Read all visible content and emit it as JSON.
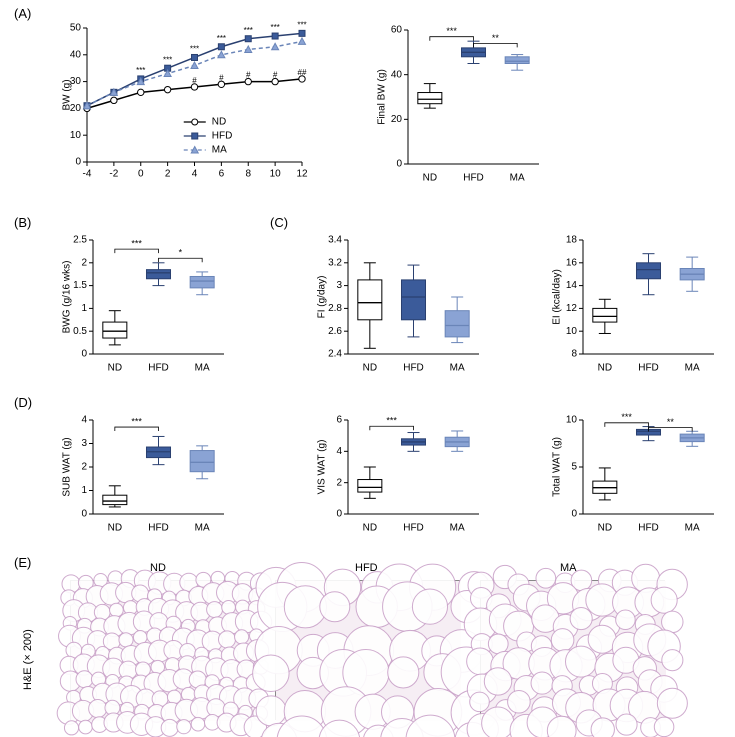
{
  "colors": {
    "nd_fill": "#ffffff",
    "nd_stroke": "#000000",
    "hfd_fill": "#3b5b9a",
    "hfd_stroke": "#2a4070",
    "ma_fill": "#8aa3d4",
    "ma_stroke": "#6a85b8",
    "axis": "#000000",
    "bg": "#ffffff",
    "he_bg": "#f6eef4",
    "he_line": "#caa3c9"
  },
  "panelA": {
    "label": "(A)",
    "line": {
      "xlabel": "",
      "ylabel": "BW (g)",
      "xlim": [
        -4,
        12
      ],
      "xticks": [
        -4,
        -2,
        0,
        2,
        4,
        6,
        8,
        10,
        12
      ],
      "ylim": [
        0,
        50
      ],
      "yticks": [
        0,
        10,
        20,
        30,
        40,
        50
      ],
      "series": {
        "ND": {
          "x": [
            -4,
            -2,
            0,
            2,
            4,
            6,
            8,
            10,
            12
          ],
          "y": [
            20,
            23,
            26,
            27,
            28,
            29,
            30,
            30,
            31
          ],
          "marker": "circle",
          "line_style": "solid",
          "color_key": "nd"
        },
        "HFD": {
          "x": [
            -4,
            -2,
            0,
            2,
            4,
            6,
            8,
            10,
            12
          ],
          "y": [
            21,
            26,
            31,
            35,
            39,
            43,
            46,
            47,
            48
          ],
          "marker": "square",
          "line_style": "solid",
          "color_key": "hfd"
        },
        "MA": {
          "x": [
            -4,
            -2,
            0,
            2,
            4,
            6,
            8,
            10,
            12
          ],
          "y": [
            21,
            26,
            30,
            33,
            36,
            40,
            42,
            43,
            45
          ],
          "marker": "triangle",
          "line_style": "dash",
          "color_key": "ma"
        }
      },
      "sig_top": {
        "x": [
          0,
          2,
          4,
          6,
          8,
          10,
          12
        ],
        "text": [
          "***",
          "***",
          "***",
          "***",
          "***",
          "***",
          "***"
        ]
      },
      "sig_mid": {
        "x": [
          4,
          6,
          8,
          10,
          12
        ],
        "text": [
          "#",
          "#",
          "#",
          "#",
          "##"
        ]
      },
      "legend": [
        {
          "label": "ND",
          "key": "nd",
          "marker": "circle",
          "dash": false
        },
        {
          "label": "HFD",
          "key": "hfd",
          "marker": "square",
          "dash": false
        },
        {
          "label": "MA",
          "key": "ma",
          "marker": "triangle",
          "dash": true
        }
      ]
    },
    "box": {
      "ylabel": "Final BW (g)",
      "ylim": [
        0,
        60
      ],
      "yticks": [
        0,
        20,
        40,
        60
      ],
      "cats": [
        "ND",
        "HFD",
        "MA"
      ],
      "data": {
        "ND": {
          "min": 25,
          "q1": 27,
          "med": 29,
          "q3": 32,
          "max": 36,
          "color_key": "nd"
        },
        "HFD": {
          "min": 45,
          "q1": 48,
          "med": 50,
          "q3": 52,
          "max": 55,
          "color_key": "hfd"
        },
        "MA": {
          "min": 42,
          "q1": 45,
          "med": 46,
          "q3": 48,
          "max": 49,
          "color_key": "ma"
        }
      },
      "sig": [
        {
          "from": "ND",
          "to": "HFD",
          "text": "***",
          "y": 57
        },
        {
          "from": "HFD",
          "to": "MA",
          "text": "**",
          "y": 54
        }
      ]
    }
  },
  "panelB": {
    "label": "(B)",
    "box": {
      "ylabel": "BWG (g/16 wks)",
      "ylim": [
        0,
        2.5
      ],
      "yticks": [
        0,
        0.5,
        1.0,
        1.5,
        2.0,
        2.5
      ],
      "cats": [
        "ND",
        "HFD",
        "MA"
      ],
      "data": {
        "ND": {
          "min": 0.2,
          "q1": 0.35,
          "med": 0.5,
          "q3": 0.7,
          "max": 0.95,
          "color_key": "nd"
        },
        "HFD": {
          "min": 1.5,
          "q1": 1.65,
          "med": 1.78,
          "q3": 1.85,
          "max": 2.0,
          "color_key": "hfd"
        },
        "MA": {
          "min": 1.3,
          "q1": 1.45,
          "med": 1.6,
          "q3": 1.7,
          "max": 1.8,
          "color_key": "ma"
        }
      },
      "sig": [
        {
          "from": "ND",
          "to": "HFD",
          "text": "***",
          "y": 2.3
        },
        {
          "from": "HFD",
          "to": "MA",
          "text": "*",
          "y": 2.1
        }
      ]
    }
  },
  "panelC": {
    "label": "(C)",
    "fi": {
      "ylabel": "FI (g/day)",
      "ylim": [
        2.4,
        3.4
      ],
      "yticks": [
        2.4,
        2.6,
        2.8,
        3.0,
        3.2,
        3.4
      ],
      "cats": [
        "ND",
        "HFD",
        "MA"
      ],
      "data": {
        "ND": {
          "min": 2.45,
          "q1": 2.7,
          "med": 2.85,
          "q3": 3.05,
          "max": 3.2,
          "color_key": "nd"
        },
        "HFD": {
          "min": 2.55,
          "q1": 2.7,
          "med": 2.9,
          "q3": 3.05,
          "max": 3.18,
          "color_key": "hfd"
        },
        "MA": {
          "min": 2.5,
          "q1": 2.55,
          "med": 2.65,
          "q3": 2.78,
          "max": 2.9,
          "color_key": "ma"
        }
      },
      "sig": []
    },
    "ei": {
      "ylabel": "EI (kcal/day)",
      "ylim": [
        8,
        18
      ],
      "yticks": [
        8,
        10,
        12,
        14,
        16,
        18
      ],
      "cats": [
        "ND",
        "HFD",
        "MA"
      ],
      "data": {
        "ND": {
          "min": 9.8,
          "q1": 10.8,
          "med": 11.3,
          "q3": 12.0,
          "max": 12.8,
          "color_key": "nd"
        },
        "HFD": {
          "min": 13.2,
          "q1": 14.6,
          "med": 15.4,
          "q3": 16.0,
          "max": 16.8,
          "color_key": "hfd"
        },
        "MA": {
          "min": 13.5,
          "q1": 14.5,
          "med": 15.0,
          "q3": 15.5,
          "max": 16.5,
          "color_key": "ma"
        }
      },
      "sig": []
    }
  },
  "panelD": {
    "label": "(D)",
    "sub": {
      "ylabel": "SUB WAT (g)",
      "ylim": [
        0,
        4
      ],
      "yticks": [
        0,
        1,
        2,
        3,
        4
      ],
      "cats": [
        "ND",
        "HFD",
        "MA"
      ],
      "data": {
        "ND": {
          "min": 0.3,
          "q1": 0.4,
          "med": 0.55,
          "q3": 0.8,
          "max": 1.2,
          "color_key": "nd"
        },
        "HFD": {
          "min": 2.1,
          "q1": 2.4,
          "med": 2.65,
          "q3": 2.85,
          "max": 3.3,
          "color_key": "hfd"
        },
        "MA": {
          "min": 1.5,
          "q1": 1.8,
          "med": 2.2,
          "q3": 2.7,
          "max": 2.9,
          "color_key": "ma"
        }
      },
      "sig": [
        {
          "from": "ND",
          "to": "HFD",
          "text": "***",
          "y": 3.7
        }
      ]
    },
    "vis": {
      "ylabel": "VIS WAT (g)",
      "ylim": [
        0,
        6
      ],
      "yticks": [
        0,
        2,
        4,
        6
      ],
      "cats": [
        "ND",
        "HFD",
        "MA"
      ],
      "data": {
        "ND": {
          "min": 1.0,
          "q1": 1.4,
          "med": 1.7,
          "q3": 2.2,
          "max": 3.0,
          "color_key": "nd"
        },
        "HFD": {
          "min": 4.0,
          "q1": 4.4,
          "med": 4.6,
          "q3": 4.8,
          "max": 5.2,
          "color_key": "hfd"
        },
        "MA": {
          "min": 4.0,
          "q1": 4.3,
          "med": 4.6,
          "q3": 4.9,
          "max": 5.3,
          "color_key": "ma"
        }
      },
      "sig": [
        {
          "from": "ND",
          "to": "HFD",
          "text": "***",
          "y": 5.6
        }
      ]
    },
    "total": {
      "ylabel": "Total WAT (g)",
      "ylim": [
        0,
        10
      ],
      "yticks": [
        0,
        5,
        10
      ],
      "cats": [
        "ND",
        "HFD",
        "MA"
      ],
      "data": {
        "ND": {
          "min": 1.5,
          "q1": 2.2,
          "med": 2.8,
          "q3": 3.5,
          "max": 4.9,
          "color_key": "nd"
        },
        "HFD": {
          "min": 7.8,
          "q1": 8.4,
          "med": 8.8,
          "q3": 9.0,
          "max": 9.3,
          "color_key": "hfd"
        },
        "MA": {
          "min": 7.2,
          "q1": 7.7,
          "med": 8.1,
          "q3": 8.5,
          "max": 8.8,
          "color_key": "ma"
        }
      },
      "sig": [
        {
          "from": "ND",
          "to": "HFD",
          "text": "***",
          "y": 9.7
        },
        {
          "from": "HFD",
          "to": "MA",
          "text": "**",
          "y": 9.2
        }
      ]
    }
  },
  "panelE": {
    "label": "(E)",
    "ylabel": "H&E (× 200)",
    "titles": [
      "ND",
      "HFD",
      "MA"
    ]
  }
}
